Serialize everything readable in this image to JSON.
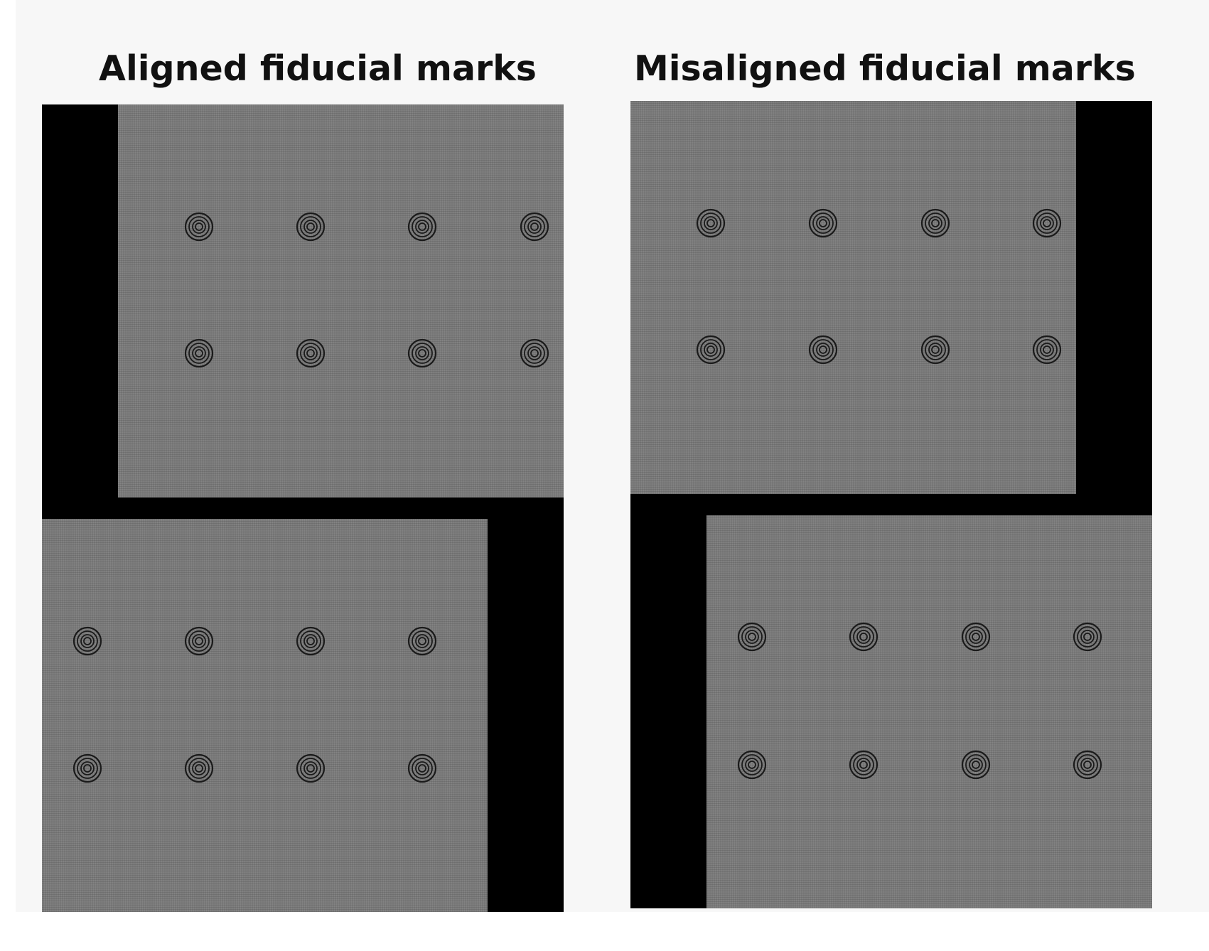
{
  "panels": [
    {
      "title": "Aligned fiducial marks"
    },
    {
      "title": "Misaligned fiducial marks"
    }
  ],
  "colors": {
    "page_background": "#f7f7f7",
    "panel_background": "#000000",
    "frame_gray": "#7a7a7a",
    "mark_stroke": "#1a1a1a"
  },
  "icon": "fiducial-mark-icon"
}
